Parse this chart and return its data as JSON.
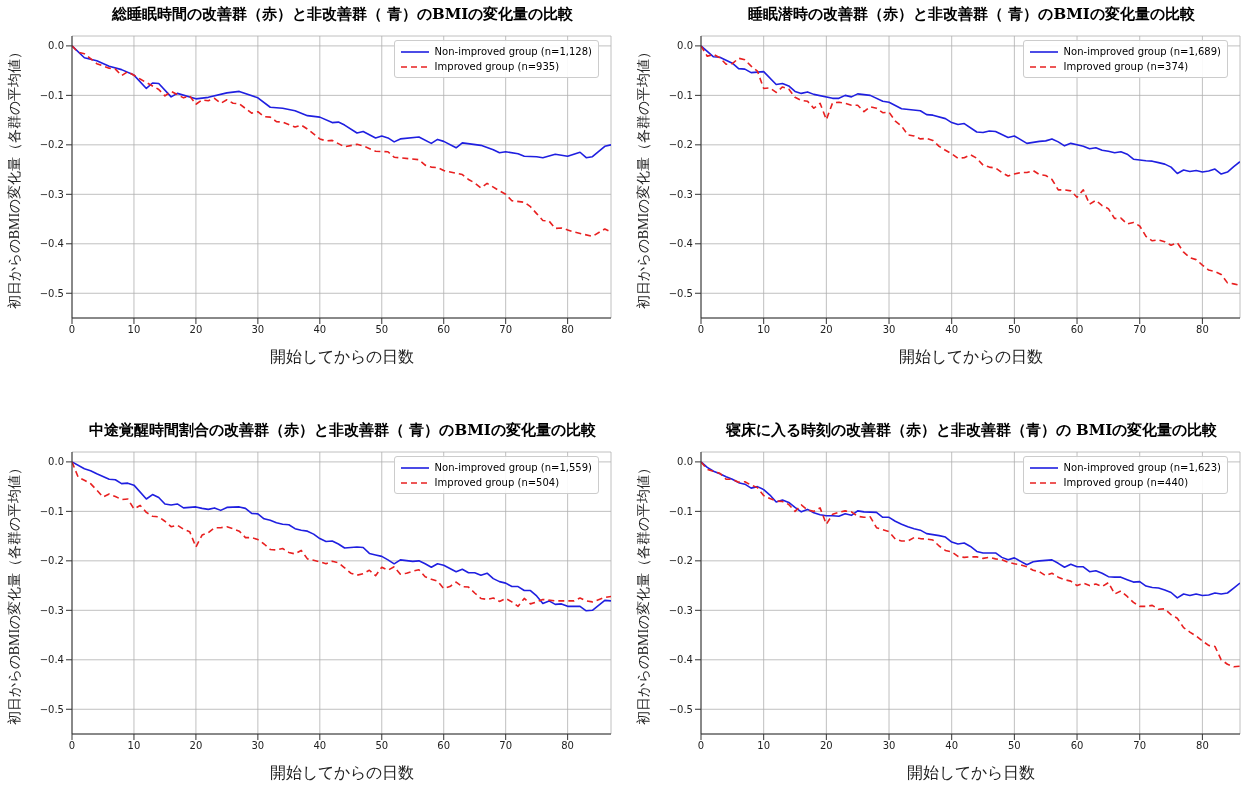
{
  "chart_data": [
    {
      "type": "line",
      "title": "総睡眠時間の改善群（赤）と非改善群（ 青）のBMIの変化量の比較",
      "xlabel": "開始してからの日数",
      "ylabel": "初日からのBMIの変化量（各群の平均値）",
      "xlim": [
        0,
        87
      ],
      "xticks": [
        0,
        10,
        20,
        30,
        40,
        50,
        60,
        70,
        80
      ],
      "ylim": [
        -0.55,
        0.02
      ],
      "yticks": [
        {
          "value": 0,
          "label": "0.0"
        },
        {
          "value": -0.1,
          "label": "−0.1"
        },
        {
          "value": -0.2,
          "label": "−0.2"
        },
        {
          "value": -0.3,
          "label": "−0.3"
        },
        {
          "value": -0.4,
          "label": "−0.4"
        },
        {
          "value": -0.5,
          "label": "−0.5"
        }
      ],
      "grid": true,
      "legend": "top right",
      "series": [
        {
          "name": "Non-improved group (n=1,128)",
          "color": "#1f1fe0",
          "line_style": "solid",
          "x": [
            0,
            2,
            4,
            6,
            8,
            10,
            12,
            13,
            14,
            16,
            17,
            20,
            22,
            25,
            27,
            30,
            32,
            34,
            36,
            38,
            40,
            42,
            43,
            44,
            46,
            47,
            49,
            50,
            51,
            52,
            53,
            56,
            58,
            59,
            60,
            62,
            63,
            66,
            68,
            69,
            70,
            72,
            73,
            75,
            76,
            78,
            80,
            82,
            83,
            84,
            86,
            87
          ],
          "values": [
            0,
            -0.024,
            -0.03,
            -0.041,
            -0.048,
            -0.059,
            -0.086,
            -0.075,
            -0.076,
            -0.103,
            -0.096,
            -0.107,
            -0.104,
            -0.095,
            -0.092,
            -0.105,
            -0.124,
            -0.126,
            -0.131,
            -0.141,
            -0.144,
            -0.155,
            -0.154,
            -0.16,
            -0.176,
            -0.173,
            -0.186,
            -0.182,
            -0.186,
            -0.194,
            -0.188,
            -0.184,
            -0.197,
            -0.189,
            -0.193,
            -0.206,
            -0.196,
            -0.201,
            -0.21,
            -0.216,
            -0.214,
            -0.218,
            -0.223,
            -0.224,
            -0.226,
            -0.219,
            -0.223,
            -0.215,
            -0.226,
            -0.224,
            -0.203,
            -0.2
          ]
        },
        {
          "name": "Improved group (n=935)",
          "color": "#e82020",
          "line_style": "dashed",
          "x": [
            0,
            1,
            2,
            4,
            6,
            7,
            8,
            9,
            11,
            12,
            14,
            15,
            16,
            18,
            19,
            20,
            21,
            22,
            23,
            24,
            25,
            26,
            27,
            29,
            30,
            31,
            32,
            33,
            34,
            36,
            37,
            38,
            40,
            41,
            42,
            44,
            46,
            47,
            49,
            51,
            52,
            56,
            57,
            58,
            59,
            60,
            63,
            64,
            65,
            66,
            67,
            69,
            70,
            71,
            73,
            74,
            75,
            76,
            77,
            78,
            79,
            80,
            81,
            84,
            86,
            87
          ],
          "values": [
            0,
            -0.013,
            -0.016,
            -0.036,
            -0.045,
            -0.047,
            -0.06,
            -0.052,
            -0.067,
            -0.074,
            -0.088,
            -0.101,
            -0.092,
            -0.105,
            -0.101,
            -0.118,
            -0.109,
            -0.111,
            -0.106,
            -0.116,
            -0.109,
            -0.116,
            -0.117,
            -0.136,
            -0.133,
            -0.143,
            -0.144,
            -0.153,
            -0.154,
            -0.164,
            -0.16,
            -0.168,
            -0.188,
            -0.192,
            -0.191,
            -0.204,
            -0.199,
            -0.202,
            -0.213,
            -0.214,
            -0.225,
            -0.23,
            -0.241,
            -0.245,
            -0.246,
            -0.252,
            -0.26,
            -0.27,
            -0.277,
            -0.287,
            -0.278,
            -0.293,
            -0.3,
            -0.313,
            -0.316,
            -0.325,
            -0.339,
            -0.353,
            -0.354,
            -0.369,
            -0.368,
            -0.372,
            -0.376,
            -0.385,
            -0.37,
            -0.376
          ]
        }
      ]
    },
    {
      "type": "line",
      "title": "睡眠潜時の改善群（赤）と非改善群（ 青）のBMIの変化量の比較",
      "xlabel": "開始してからの日数",
      "ylabel": "初日からのBMIの変化量（各群の平均値）",
      "xlim": [
        0,
        86
      ],
      "xticks": [
        0,
        10,
        20,
        30,
        40,
        50,
        60,
        70,
        80
      ],
      "ylim": [
        -0.55,
        0.02
      ],
      "yticks": [
        {
          "value": 0,
          "label": "0.0"
        },
        {
          "value": -0.1,
          "label": "−0.1"
        },
        {
          "value": -0.2,
          "label": "−0.2"
        },
        {
          "value": -0.3,
          "label": "−0.3"
        },
        {
          "value": -0.4,
          "label": "−0.4"
        },
        {
          "value": -0.5,
          "label": "−0.5"
        }
      ],
      "grid": true,
      "legend": "top right",
      "series": [
        {
          "name": "Non-improved group (n=1,689)",
          "color": "#1f1fe0",
          "line_style": "solid",
          "x": [
            0,
            2,
            3,
            5,
            6,
            7,
            8,
            10,
            12,
            13,
            14,
            15,
            16,
            17,
            18,
            21,
            22,
            23,
            24,
            25,
            27,
            29,
            30,
            32,
            35,
            36,
            37,
            39,
            40,
            41,
            42,
            44,
            45,
            46,
            47,
            49,
            50,
            52,
            54,
            55,
            56,
            57,
            58,
            59,
            60,
            61,
            62,
            63,
            64,
            65,
            66,
            67,
            68,
            69,
            71,
            72,
            73,
            74,
            75,
            76,
            77,
            78,
            79,
            80,
            81,
            82,
            83,
            84,
            85,
            86
          ],
          "values": [
            0,
            -0.022,
            -0.023,
            -0.035,
            -0.046,
            -0.047,
            -0.054,
            -0.052,
            -0.078,
            -0.076,
            -0.081,
            -0.092,
            -0.096,
            -0.093,
            -0.098,
            -0.106,
            -0.106,
            -0.1,
            -0.103,
            -0.097,
            -0.1,
            -0.112,
            -0.114,
            -0.127,
            -0.131,
            -0.139,
            -0.14,
            -0.147,
            -0.155,
            -0.159,
            -0.157,
            -0.174,
            -0.175,
            -0.172,
            -0.173,
            -0.185,
            -0.182,
            -0.197,
            -0.193,
            -0.192,
            -0.188,
            -0.194,
            -0.202,
            -0.197,
            -0.2,
            -0.203,
            -0.208,
            -0.206,
            -0.211,
            -0.213,
            -0.216,
            -0.214,
            -0.219,
            -0.229,
            -0.232,
            -0.233,
            -0.236,
            -0.239,
            -0.245,
            -0.258,
            -0.251,
            -0.254,
            -0.252,
            -0.255,
            -0.253,
            -0.249,
            -0.259,
            -0.255,
            -0.244,
            -0.234
          ]
        },
        {
          "name": "Improved group (n=374)",
          "color": "#e82020",
          "line_style": "dashed",
          "x": [
            0,
            1,
            2,
            3,
            4,
            5,
            6,
            7,
            8,
            9,
            10,
            11,
            12,
            13,
            14,
            15,
            16,
            17,
            18,
            19,
            20,
            21,
            22,
            23,
            24,
            25,
            26,
            27,
            28,
            29,
            30,
            31,
            32,
            33,
            34,
            35,
            36,
            37,
            38,
            39,
            40,
            41,
            42,
            43,
            44,
            45,
            46,
            47,
            48,
            49,
            50,
            51,
            52,
            53,
            54,
            55,
            56,
            57,
            58,
            59,
            60,
            61,
            62,
            63,
            64,
            65,
            66,
            67,
            68,
            69,
            70,
            71,
            72,
            73,
            74,
            75,
            76,
            77,
            78,
            79,
            80,
            81,
            82,
            83,
            84,
            85,
            86
          ],
          "values": [
            0,
            -0.021,
            -0.017,
            -0.024,
            -0.037,
            -0.036,
            -0.025,
            -0.028,
            -0.041,
            -0.051,
            -0.086,
            -0.085,
            -0.094,
            -0.083,
            -0.087,
            -0.104,
            -0.11,
            -0.112,
            -0.126,
            -0.116,
            -0.149,
            -0.115,
            -0.114,
            -0.116,
            -0.12,
            -0.12,
            -0.133,
            -0.123,
            -0.126,
            -0.135,
            -0.134,
            -0.152,
            -0.162,
            -0.18,
            -0.182,
            -0.188,
            -0.187,
            -0.191,
            -0.203,
            -0.211,
            -0.218,
            -0.227,
            -0.226,
            -0.22,
            -0.227,
            -0.241,
            -0.245,
            -0.247,
            -0.256,
            -0.263,
            -0.259,
            -0.256,
            -0.256,
            -0.252,
            -0.26,
            -0.262,
            -0.27,
            -0.291,
            -0.291,
            -0.293,
            -0.306,
            -0.291,
            -0.32,
            -0.312,
            -0.323,
            -0.329,
            -0.349,
            -0.348,
            -0.36,
            -0.357,
            -0.364,
            -0.385,
            -0.394,
            -0.392,
            -0.396,
            -0.403,
            -0.398,
            -0.417,
            -0.428,
            -0.432,
            -0.443,
            -0.453,
            -0.456,
            -0.462,
            -0.479,
            -0.481,
            -0.484
          ]
        }
      ]
    },
    {
      "type": "line",
      "title": "中途覚醒時間割合の改善群（赤）と非改善群（ 青）のBMIの変化量の比較",
      "xlabel": "開始してからの日数",
      "ylabel": "初日からのBMIの変化量（各群の平均値）",
      "xlim": [
        0,
        87
      ],
      "xticks": [
        0,
        10,
        20,
        30,
        40,
        50,
        60,
        70,
        80
      ],
      "ylim": [
        -0.55,
        0.02
      ],
      "yticks": [
        {
          "value": 0,
          "label": "0.0"
        },
        {
          "value": -0.1,
          "label": "−0.1"
        },
        {
          "value": -0.2,
          "label": "−0.2"
        },
        {
          "value": -0.3,
          "label": "−0.3"
        },
        {
          "value": -0.4,
          "label": "−0.4"
        },
        {
          "value": -0.5,
          "label": "−0.5"
        }
      ],
      "grid": true,
      "legend": "top right",
      "series": [
        {
          "name": "Non-improved group (n=1,559)",
          "color": "#1f1fe0",
          "line_style": "solid",
          "x": [
            0,
            2,
            3,
            4,
            6,
            7,
            8,
            9,
            10,
            12,
            13,
            14,
            15,
            16,
            17,
            18,
            20,
            21,
            22,
            23,
            24,
            25,
            27,
            28,
            29,
            30,
            31,
            32,
            33,
            34,
            35,
            36,
            37,
            38,
            39,
            40,
            41,
            42,
            43,
            44,
            46,
            47,
            48,
            49,
            50,
            51,
            52,
            53,
            55,
            56,
            57,
            58,
            59,
            60,
            62,
            63,
            64,
            65,
            66,
            67,
            68,
            69,
            70,
            71,
            72,
            73,
            74,
            75,
            76,
            77,
            78,
            79,
            80,
            82,
            83,
            84,
            86,
            87
          ],
          "values": [
            0,
            -0.014,
            -0.018,
            -0.024,
            -0.035,
            -0.036,
            -0.044,
            -0.043,
            -0.047,
            -0.075,
            -0.066,
            -0.072,
            -0.085,
            -0.087,
            -0.085,
            -0.093,
            -0.091,
            -0.094,
            -0.096,
            -0.093,
            -0.098,
            -0.092,
            -0.091,
            -0.094,
            -0.104,
            -0.105,
            -0.115,
            -0.118,
            -0.123,
            -0.126,
            -0.127,
            -0.135,
            -0.138,
            -0.14,
            -0.146,
            -0.155,
            -0.161,
            -0.16,
            -0.166,
            -0.174,
            -0.172,
            -0.173,
            -0.185,
            -0.188,
            -0.191,
            -0.198,
            -0.206,
            -0.198,
            -0.201,
            -0.2,
            -0.206,
            -0.213,
            -0.206,
            -0.209,
            -0.222,
            -0.217,
            -0.224,
            -0.224,
            -0.229,
            -0.225,
            -0.236,
            -0.242,
            -0.245,
            -0.252,
            -0.252,
            -0.26,
            -0.26,
            -0.271,
            -0.286,
            -0.281,
            -0.288,
            -0.287,
            -0.292,
            -0.292,
            -0.301,
            -0.3,
            -0.28,
            -0.281
          ]
        },
        {
          "name": "Improved group (n=504)",
          "color": "#e82020",
          "line_style": "dashed",
          "x": [
            0,
            1,
            2,
            3,
            4,
            5,
            6,
            7,
            8,
            9,
            10,
            11,
            12,
            13,
            14,
            15,
            16,
            17,
            18,
            19,
            20,
            21,
            22,
            23,
            24,
            25,
            26,
            27,
            28,
            29,
            30,
            31,
            32,
            33,
            34,
            35,
            36,
            37,
            38,
            39,
            40,
            41,
            42,
            43,
            44,
            45,
            46,
            47,
            48,
            49,
            50,
            51,
            52,
            53,
            54,
            55,
            56,
            57,
            58,
            59,
            60,
            61,
            62,
            63,
            64,
            65,
            66,
            67,
            68,
            69,
            70,
            71,
            72,
            73,
            74,
            75,
            76,
            78,
            80,
            81,
            82,
            83,
            84,
            86,
            87
          ],
          "values": [
            0,
            -0.031,
            -0.037,
            -0.044,
            -0.057,
            -0.071,
            -0.065,
            -0.07,
            -0.076,
            -0.075,
            -0.095,
            -0.088,
            -0.102,
            -0.11,
            -0.111,
            -0.12,
            -0.131,
            -0.128,
            -0.136,
            -0.141,
            -0.172,
            -0.148,
            -0.143,
            -0.133,
            -0.133,
            -0.131,
            -0.135,
            -0.14,
            -0.153,
            -0.153,
            -0.157,
            -0.166,
            -0.177,
            -0.178,
            -0.175,
            -0.183,
            -0.186,
            -0.179,
            -0.196,
            -0.199,
            -0.202,
            -0.206,
            -0.201,
            -0.204,
            -0.214,
            -0.225,
            -0.229,
            -0.226,
            -0.219,
            -0.23,
            -0.213,
            -0.219,
            -0.212,
            -0.227,
            -0.225,
            -0.221,
            -0.218,
            -0.232,
            -0.237,
            -0.241,
            -0.256,
            -0.252,
            -0.243,
            -0.252,
            -0.253,
            -0.265,
            -0.276,
            -0.278,
            -0.275,
            -0.282,
            -0.276,
            -0.283,
            -0.292,
            -0.276,
            -0.287,
            -0.283,
            -0.278,
            -0.281,
            -0.281,
            -0.281,
            -0.275,
            -0.281,
            -0.283,
            -0.274,
            -0.272
          ]
        }
      ]
    },
    {
      "type": "line",
      "title": "寝床に入る時刻の改善群（赤）と非改善群（青）の BMIの変化量の比較",
      "xlabel": "開始してから日数",
      "ylabel": "初日からのBMIの変化量（各群の平均値）",
      "xlim": [
        0,
        86
      ],
      "xticks": [
        0,
        10,
        20,
        30,
        40,
        50,
        60,
        70,
        80
      ],
      "ylim": [
        -0.55,
        0.02
      ],
      "yticks": [
        {
          "value": 0,
          "label": "0.0"
        },
        {
          "value": -0.1,
          "label": "−0.1"
        },
        {
          "value": -0.2,
          "label": "−0.2"
        },
        {
          "value": -0.3,
          "label": "−0.3"
        },
        {
          "value": -0.4,
          "label": "−0.4"
        },
        {
          "value": -0.5,
          "label": "−0.5"
        }
      ],
      "grid": true,
      "legend": "top right",
      "series": [
        {
          "name": "Non-improved group (n=1,623)",
          "color": "#1f1fe0",
          "line_style": "solid",
          "x": [
            0,
            1,
            2,
            3,
            4,
            5,
            6,
            7,
            8,
            9,
            10,
            11,
            12,
            13,
            14,
            15,
            16,
            17,
            18,
            19,
            20,
            21,
            22,
            23,
            24,
            25,
            26,
            28,
            29,
            30,
            31,
            32,
            33,
            34,
            35,
            36,
            37,
            38,
            39,
            40,
            41,
            42,
            43,
            44,
            45,
            47,
            48,
            49,
            50,
            51,
            52,
            53,
            54,
            56,
            57,
            58,
            59,
            60,
            61,
            62,
            63,
            64,
            65,
            66,
            67,
            68,
            69,
            70,
            71,
            72,
            73,
            74,
            75,
            76,
            77,
            78,
            79,
            80,
            81,
            82,
            83,
            84,
            85,
            86
          ],
          "values": [
            0,
            -0.011,
            -0.019,
            -0.024,
            -0.03,
            -0.035,
            -0.042,
            -0.045,
            -0.053,
            -0.05,
            -0.056,
            -0.067,
            -0.081,
            -0.077,
            -0.082,
            -0.092,
            -0.101,
            -0.096,
            -0.103,
            -0.107,
            -0.109,
            -0.109,
            -0.11,
            -0.105,
            -0.108,
            -0.099,
            -0.101,
            -0.102,
            -0.112,
            -0.112,
            -0.12,
            -0.126,
            -0.131,
            -0.135,
            -0.138,
            -0.145,
            -0.147,
            -0.149,
            -0.152,
            -0.162,
            -0.166,
            -0.164,
            -0.171,
            -0.181,
            -0.184,
            -0.184,
            -0.193,
            -0.198,
            -0.194,
            -0.201,
            -0.208,
            -0.202,
            -0.2,
            -0.198,
            -0.205,
            -0.213,
            -0.207,
            -0.212,
            -0.212,
            -0.222,
            -0.22,
            -0.225,
            -0.232,
            -0.233,
            -0.233,
            -0.238,
            -0.243,
            -0.242,
            -0.251,
            -0.254,
            -0.255,
            -0.259,
            -0.264,
            -0.275,
            -0.267,
            -0.27,
            -0.267,
            -0.27,
            -0.269,
            -0.265,
            -0.267,
            -0.265,
            -0.255,
            -0.245
          ]
        },
        {
          "name": "Improved group (n=440)",
          "color": "#e82020",
          "line_style": "dashed",
          "x": [
            0,
            1,
            2,
            3,
            4,
            5,
            6,
            7,
            8,
            9,
            10,
            11,
            12,
            13,
            14,
            15,
            16,
            17,
            18,
            19,
            20,
            21,
            22,
            23,
            24,
            25,
            26,
            27,
            28,
            29,
            30,
            31,
            32,
            33,
            34,
            35,
            36,
            37,
            38,
            39,
            40,
            41,
            42,
            43,
            44,
            45,
            46,
            47,
            48,
            49,
            50,
            51,
            52,
            53,
            54,
            55,
            56,
            57,
            58,
            59,
            60,
            61,
            62,
            63,
            64,
            65,
            66,
            67,
            68,
            69,
            70,
            71,
            72,
            73,
            74,
            75,
            76,
            77,
            78,
            79,
            80,
            81,
            82,
            83,
            84,
            85,
            86
          ],
          "values": [
            0,
            -0.015,
            -0.019,
            -0.023,
            -0.035,
            -0.035,
            -0.041,
            -0.04,
            -0.047,
            -0.052,
            -0.068,
            -0.074,
            -0.079,
            -0.08,
            -0.086,
            -0.1,
            -0.087,
            -0.097,
            -0.1,
            -0.093,
            -0.126,
            -0.106,
            -0.102,
            -0.099,
            -0.101,
            -0.11,
            -0.112,
            -0.111,
            -0.133,
            -0.137,
            -0.141,
            -0.156,
            -0.16,
            -0.16,
            -0.153,
            -0.155,
            -0.156,
            -0.158,
            -0.17,
            -0.179,
            -0.182,
            -0.191,
            -0.193,
            -0.192,
            -0.192,
            -0.195,
            -0.193,
            -0.196,
            -0.198,
            -0.203,
            -0.206,
            -0.208,
            -0.212,
            -0.219,
            -0.222,
            -0.23,
            -0.225,
            -0.233,
            -0.238,
            -0.241,
            -0.25,
            -0.245,
            -0.25,
            -0.247,
            -0.252,
            -0.244,
            -0.267,
            -0.261,
            -0.272,
            -0.284,
            -0.292,
            -0.292,
            -0.29,
            -0.298,
            -0.297,
            -0.309,
            -0.316,
            -0.335,
            -0.344,
            -0.352,
            -0.362,
            -0.371,
            -0.373,
            -0.4,
            -0.409,
            -0.414,
            -0.413
          ]
        }
      ]
    }
  ]
}
